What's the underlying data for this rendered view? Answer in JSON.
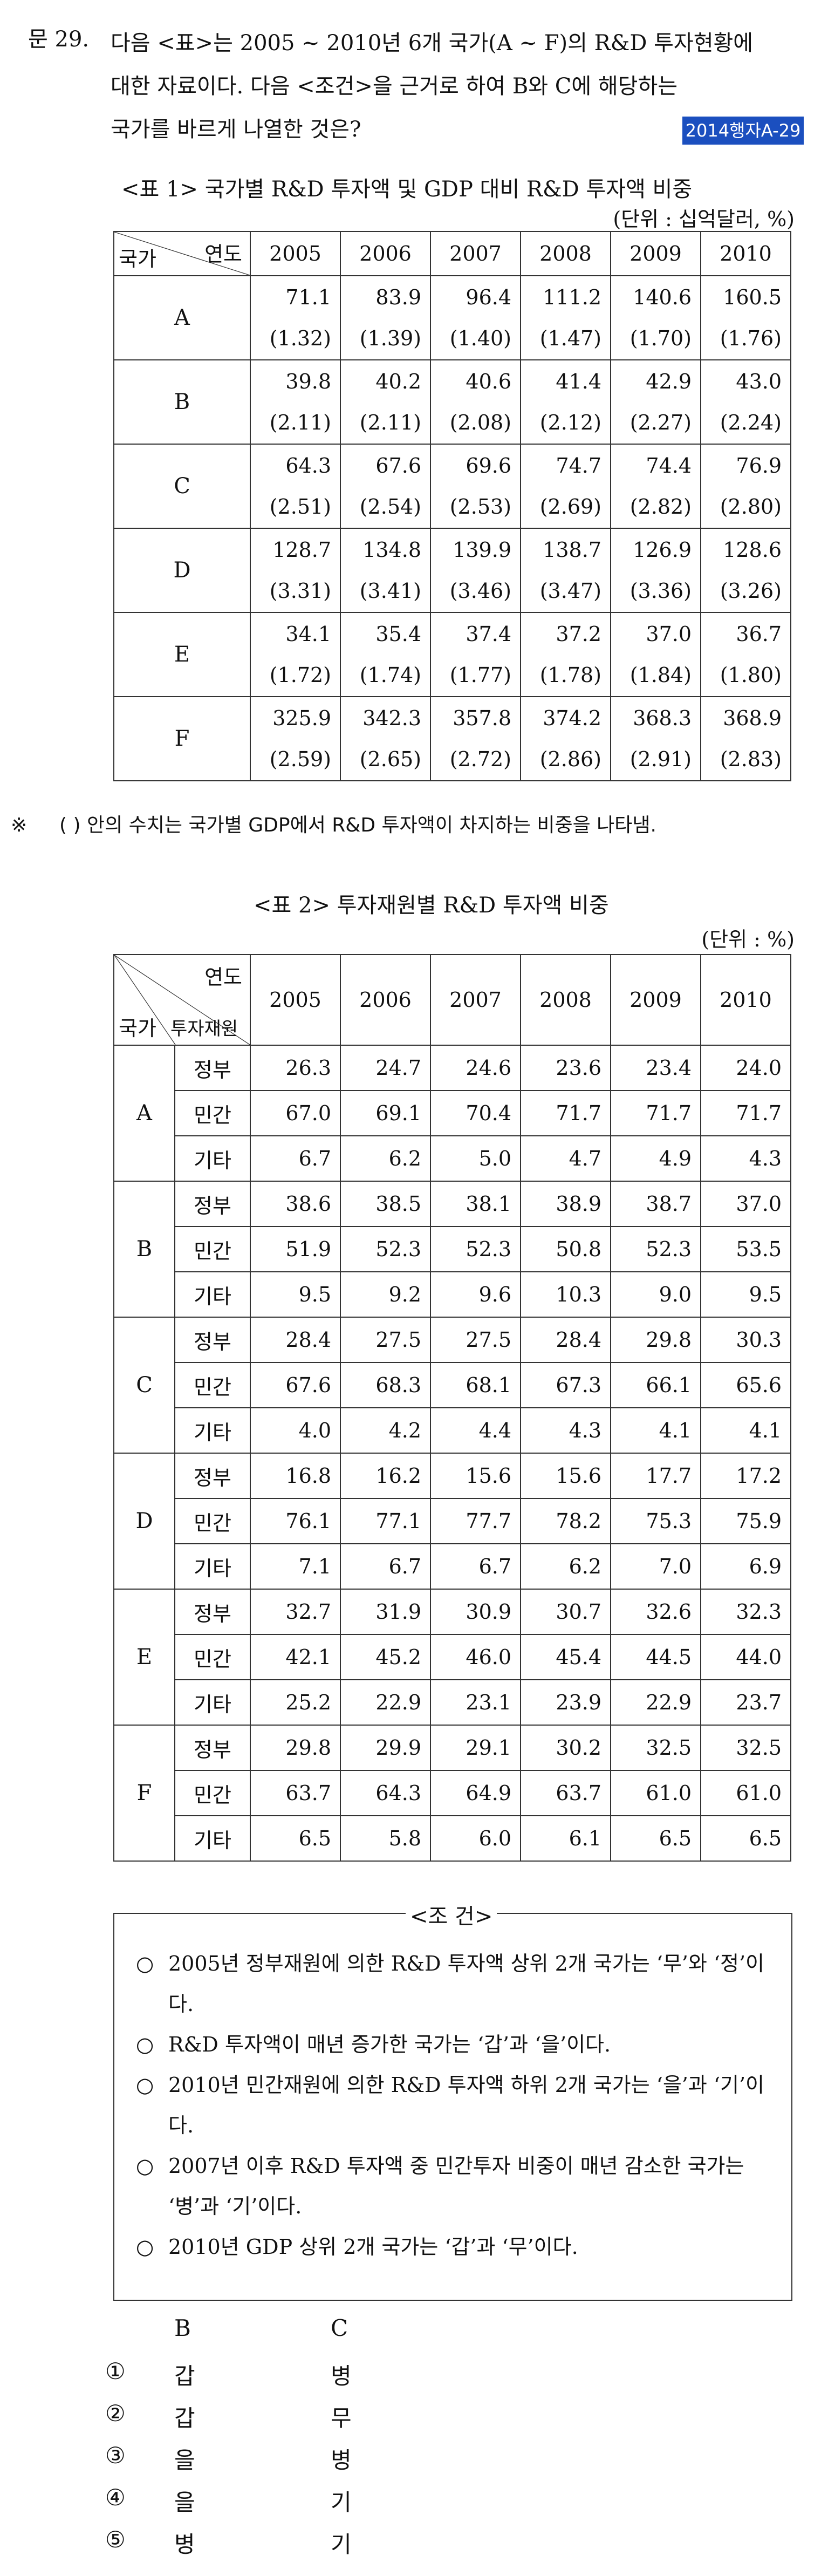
{
  "question": {
    "number": "문 29.",
    "stem_lines": [
      "다음 <표>는 2005 ~ 2010년 6개 국가(A ~ F)의 R&D 투자현황에",
      "대한 자료이다. 다음 <조건>을 근거로 하여 B와 C에 해당하는",
      "국가를 바르게 나열한 것은?"
    ],
    "source_tag": "2014행자A-29"
  },
  "table1": {
    "caption": "<표 1> 국가별 R&D 투자액 및 GDP 대비 R&D 투자액 비중",
    "unit": "(단위 : 십억달러, %)",
    "header_top": "연도",
    "header_left": "국가",
    "years": [
      "2005",
      "2006",
      "2007",
      "2008",
      "2009",
      "2010"
    ],
    "rows": [
      {
        "country": "A",
        "values": [
          "71.1",
          "83.9",
          "96.4",
          "111.2",
          "140.6",
          "160.5"
        ],
        "ratios": [
          "(1.32)",
          "(1.39)",
          "(1.40)",
          "(1.47)",
          "(1.70)",
          "(1.76)"
        ]
      },
      {
        "country": "B",
        "values": [
          "39.8",
          "40.2",
          "40.6",
          "41.4",
          "42.9",
          "43.0"
        ],
        "ratios": [
          "(2.11)",
          "(2.11)",
          "(2.08)",
          "(2.12)",
          "(2.27)",
          "(2.24)"
        ]
      },
      {
        "country": "C",
        "values": [
          "64.3",
          "67.6",
          "69.6",
          "74.7",
          "74.4",
          "76.9"
        ],
        "ratios": [
          "(2.51)",
          "(2.54)",
          "(2.53)",
          "(2.69)",
          "(2.82)",
          "(2.80)"
        ]
      },
      {
        "country": "D",
        "values": [
          "128.7",
          "134.8",
          "139.9",
          "138.7",
          "126.9",
          "128.6"
        ],
        "ratios": [
          "(3.31)",
          "(3.41)",
          "(3.46)",
          "(3.47)",
          "(3.36)",
          "(3.26)"
        ]
      },
      {
        "country": "E",
        "values": [
          "34.1",
          "35.4",
          "37.4",
          "37.2",
          "37.0",
          "36.7"
        ],
        "ratios": [
          "(1.72)",
          "(1.74)",
          "(1.77)",
          "(1.78)",
          "(1.84)",
          "(1.80)"
        ]
      },
      {
        "country": "F",
        "values": [
          "325.9",
          "342.3",
          "357.8",
          "374.2",
          "368.3",
          "368.9"
        ],
        "ratios": [
          "(2.59)",
          "(2.65)",
          "(2.72)",
          "(2.86)",
          "(2.91)",
          "(2.83)"
        ]
      }
    ],
    "footnote_mark": "※",
    "footnote": "(    ) 안의 수치는 국가별 GDP에서 R&D 투자액이 차지하는 비중을 나타냄."
  },
  "table2": {
    "caption": "<표 2> 투자재원별 R&D 투자액 비중",
    "unit": "(단위 : %)",
    "header_top": "연도",
    "header_left": "국가",
    "header_mid": "투자재원",
    "years": [
      "2005",
      "2006",
      "2007",
      "2008",
      "2009",
      "2010"
    ],
    "groups": [
      {
        "country": "A",
        "rows": [
          {
            "source": "정부",
            "values": [
              "26.3",
              "24.7",
              "24.6",
              "23.6",
              "23.4",
              "24.0"
            ]
          },
          {
            "source": "민간",
            "values": [
              "67.0",
              "69.1",
              "70.4",
              "71.7",
              "71.7",
              "71.7"
            ]
          },
          {
            "source": "기타",
            "values": [
              "6.7",
              "6.2",
              "5.0",
              "4.7",
              "4.9",
              "4.3"
            ]
          }
        ]
      },
      {
        "country": "B",
        "rows": [
          {
            "source": "정부",
            "values": [
              "38.6",
              "38.5",
              "38.1",
              "38.9",
              "38.7",
              "37.0"
            ]
          },
          {
            "source": "민간",
            "values": [
              "51.9",
              "52.3",
              "52.3",
              "50.8",
              "52.3",
              "53.5"
            ]
          },
          {
            "source": "기타",
            "values": [
              "9.5",
              "9.2",
              "9.6",
              "10.3",
              "9.0",
              "9.5"
            ]
          }
        ]
      },
      {
        "country": "C",
        "rows": [
          {
            "source": "정부",
            "values": [
              "28.4",
              "27.5",
              "27.5",
              "28.4",
              "29.8",
              "30.3"
            ]
          },
          {
            "source": "민간",
            "values": [
              "67.6",
              "68.3",
              "68.1",
              "67.3",
              "66.1",
              "65.6"
            ]
          },
          {
            "source": "기타",
            "values": [
              "4.0",
              "4.2",
              "4.4",
              "4.3",
              "4.1",
              "4.1"
            ]
          }
        ]
      },
      {
        "country": "D",
        "rows": [
          {
            "source": "정부",
            "values": [
              "16.8",
              "16.2",
              "15.6",
              "15.6",
              "17.7",
              "17.2"
            ]
          },
          {
            "source": "민간",
            "values": [
              "76.1",
              "77.1",
              "77.7",
              "78.2",
              "75.3",
              "75.9"
            ]
          },
          {
            "source": "기타",
            "values": [
              "7.1",
              "6.7",
              "6.7",
              "6.2",
              "7.0",
              "6.9"
            ]
          }
        ]
      },
      {
        "country": "E",
        "rows": [
          {
            "source": "정부",
            "values": [
              "32.7",
              "31.9",
              "30.9",
              "30.7",
              "32.6",
              "32.3"
            ]
          },
          {
            "source": "민간",
            "values": [
              "42.1",
              "45.2",
              "46.0",
              "45.4",
              "44.5",
              "44.0"
            ]
          },
          {
            "source": "기타",
            "values": [
              "25.2",
              "22.9",
              "23.1",
              "23.9",
              "22.9",
              "23.7"
            ]
          }
        ]
      },
      {
        "country": "F",
        "rows": [
          {
            "source": "정부",
            "values": [
              "29.8",
              "29.9",
              "29.1",
              "30.2",
              "32.5",
              "32.5"
            ]
          },
          {
            "source": "민간",
            "values": [
              "63.7",
              "64.3",
              "64.9",
              "63.7",
              "61.0",
              "61.0"
            ]
          },
          {
            "source": "기타",
            "values": [
              "6.5",
              "5.8",
              "6.0",
              "6.1",
              "6.5",
              "6.5"
            ]
          }
        ]
      }
    ]
  },
  "conditions": {
    "title": "<조  건>",
    "bullet": "○",
    "items": [
      "2005년 정부재원에 의한 R&D 투자액 상위 2개 국가는 ‘무’와 ‘정’이다.",
      "R&D 투자액이 매년 증가한 국가는 ‘갑’과 ‘을’이다.",
      "2010년 민간재원에 의한 R&D 투자액 하위 2개 국가는 ‘을’과 ‘기’이다.",
      "2007년 이후 R&D 투자액 중 민간투자 비중이 매년 감소한 국가는 ‘병’과 ‘기’이다.",
      "2010년 GDP 상위 2개 국가는 ‘갑’과 ‘무’이다."
    ]
  },
  "choices": {
    "header_b": "B",
    "header_c": "C",
    "options": [
      {
        "num": "①",
        "b": "갑",
        "c": "병"
      },
      {
        "num": "②",
        "b": "갑",
        "c": "무"
      },
      {
        "num": "③",
        "b": "을",
        "c": "병"
      },
      {
        "num": "④",
        "b": "을",
        "c": "기"
      },
      {
        "num": "⑤",
        "b": "병",
        "c": "기"
      }
    ]
  }
}
